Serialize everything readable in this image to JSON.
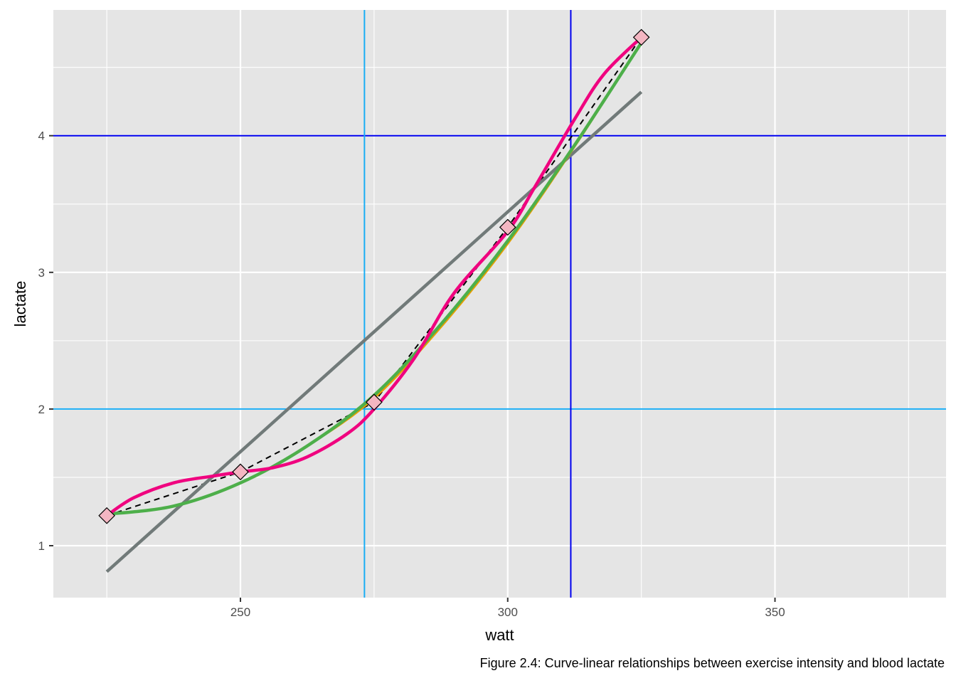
{
  "chart_data": {
    "type": "line",
    "xlabel": "watt",
    "ylabel": "lactate",
    "xlim": [
      215,
      382
    ],
    "ylim": [
      0.62,
      4.92
    ],
    "x_ticks": [
      250,
      300,
      350
    ],
    "y_ticks": [
      1,
      2,
      3,
      4
    ],
    "x_minor": [
      225,
      275,
      325,
      375
    ],
    "y_minor": [
      1.5,
      2.5,
      3.5,
      4.5
    ],
    "grid": true,
    "points": {
      "x": [
        225,
        250,
        275,
        300,
        325
      ],
      "y": [
        1.22,
        1.54,
        2.05,
        3.33,
        4.72
      ],
      "fill": "#f4b6c2",
      "stroke": "#000000"
    },
    "series": [
      {
        "type": "dashed",
        "color": "#000000",
        "x": [
          225,
          250,
          275,
          300,
          325
        ],
        "y": [
          1.22,
          1.54,
          2.05,
          3.33,
          4.72
        ]
      },
      {
        "type": "linear-fit",
        "color": "#717a79",
        "x": [
          225,
          325
        ],
        "y": [
          0.81,
          4.32
        ]
      },
      {
        "type": "quadratic-fit",
        "color": "#e69f00",
        "x": [
          225,
          237.5,
          250,
          262.5,
          275,
          287.5,
          300,
          312.5,
          325
        ],
        "y": [
          1.23,
          1.29,
          1.46,
          1.73,
          2.08,
          2.6,
          3.21,
          3.92,
          4.68
        ]
      },
      {
        "type": "cubic-fit",
        "color": "#4daf4a",
        "x": [
          225,
          237.5,
          250,
          262.5,
          275,
          287.5,
          300,
          312.5,
          325
        ],
        "y": [
          1.23,
          1.29,
          1.46,
          1.73,
          2.1,
          2.62,
          3.23,
          3.93,
          4.68
        ]
      },
      {
        "type": "polynomial-fit",
        "color": "#f0027f",
        "x": [
          225,
          230,
          237.5,
          245,
          250,
          256,
          262.5,
          270,
          275,
          282.5,
          290,
          300,
          305,
          312.5,
          318,
          325
        ],
        "y": [
          1.22,
          1.35,
          1.46,
          1.51,
          1.54,
          1.57,
          1.65,
          1.82,
          2.0,
          2.37,
          2.85,
          3.3,
          3.62,
          4.12,
          4.45,
          4.72
        ]
      }
    ],
    "reference_lines": [
      {
        "orientation": "horizontal",
        "value": 2,
        "color": "#1aadf4"
      },
      {
        "orientation": "horizontal",
        "value": 4,
        "color": "#0000ee"
      },
      {
        "orientation": "vertical",
        "value": 273.2,
        "color": "#1aadf4"
      },
      {
        "orientation": "vertical",
        "value": 311.8,
        "color": "#0000ee"
      }
    ],
    "colors": {
      "panel_bg": "#e5e5e5",
      "grid": "#ffffff"
    }
  },
  "caption": "Figure 2.4: Curve-linear relationships between exercise intensity and blood lactate"
}
